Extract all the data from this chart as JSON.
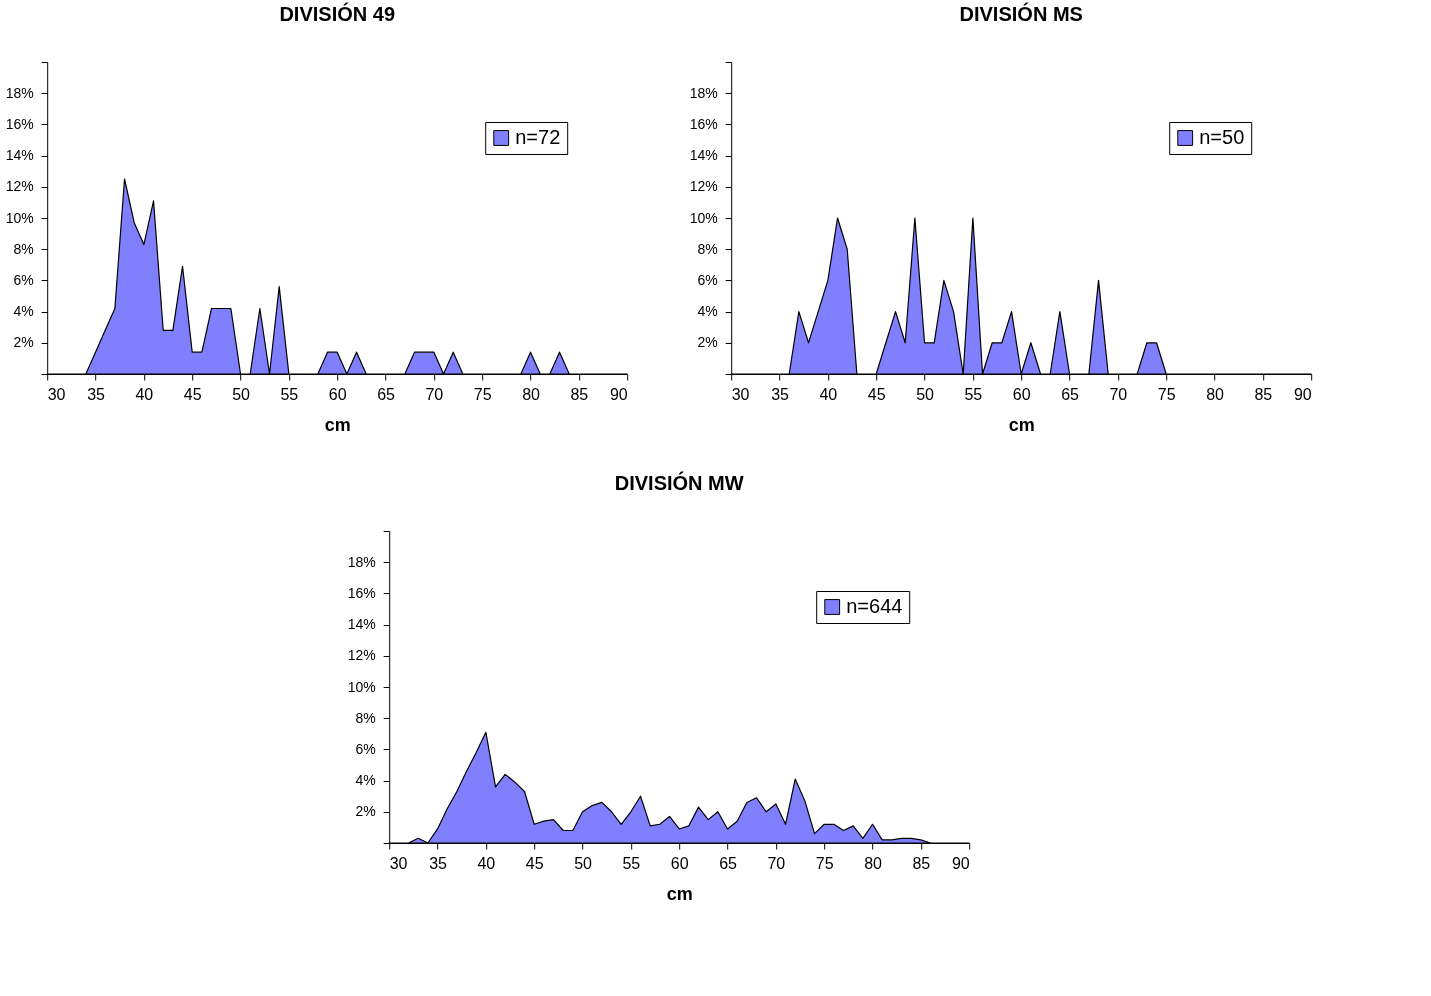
{
  "chart_data": [
    {
      "type": "area",
      "title": "DIVISIÓN 49",
      "xlabel": "cm",
      "legend": "top right",
      "grid": false,
      "x": [
        30,
        31,
        32,
        33,
        34,
        35,
        36,
        37,
        38,
        39,
        40,
        41,
        42,
        43,
        44,
        45,
        46,
        47,
        48,
        49,
        50,
        51,
        52,
        53,
        54,
        55,
        56,
        57,
        58,
        59,
        60,
        61,
        62,
        63,
        64,
        65,
        66,
        67,
        68,
        69,
        70,
        71,
        72,
        73,
        74,
        75,
        76,
        77,
        78,
        79,
        80,
        81,
        82,
        83,
        84,
        85,
        86,
        87,
        88,
        89,
        90
      ],
      "series": [
        {
          "name": "n=72",
          "color": "#8080ff",
          "values": [
            0,
            0,
            0,
            0,
            0,
            1.4,
            2.8,
            4.2,
            12.5,
            9.7,
            8.3,
            11.1,
            2.8,
            2.8,
            6.9,
            1.4,
            1.4,
            4.2,
            4.2,
            4.2,
            0,
            0,
            4.2,
            0,
            5.6,
            0,
            0,
            0,
            0,
            1.4,
            1.4,
            0,
            1.4,
            0,
            0,
            0,
            0,
            0,
            1.4,
            1.4,
            1.4,
            0,
            1.4,
            0,
            0,
            0,
            0,
            0,
            0,
            0,
            1.4,
            0,
            0,
            1.4,
            0,
            0,
            0,
            0,
            0,
            0,
            0
          ]
        }
      ],
      "xlim": [
        30,
        90
      ],
      "xticks": [
        30,
        35,
        40,
        45,
        50,
        55,
        60,
        65,
        70,
        75,
        80,
        85,
        90
      ],
      "ylim": [
        0,
        20
      ],
      "yticks": [
        {
          "value": 0,
          "label": null
        },
        {
          "value": 2,
          "label": "2%"
        },
        {
          "value": 4,
          "label": "4%"
        },
        {
          "value": 6,
          "label": "6%"
        },
        {
          "value": 8,
          "label": "8%"
        },
        {
          "value": 10,
          "label": "10%"
        },
        {
          "value": 12,
          "label": "12%"
        },
        {
          "value": 14,
          "label": "14%"
        },
        {
          "value": 16,
          "label": "16%"
        },
        {
          "value": 18,
          "label": "18%"
        },
        {
          "value": 20,
          "label": null
        }
      ]
    },
    {
      "type": "area",
      "title": "DIVISIÓN MS",
      "xlabel": "cm",
      "legend": "top right",
      "grid": false,
      "x": [
        30,
        31,
        32,
        33,
        34,
        35,
        36,
        37,
        38,
        39,
        40,
        41,
        42,
        43,
        44,
        45,
        46,
        47,
        48,
        49,
        50,
        51,
        52,
        53,
        54,
        55,
        56,
        57,
        58,
        59,
        60,
        61,
        62,
        63,
        64,
        65,
        66,
        67,
        68,
        69,
        70,
        71,
        72,
        73,
        74,
        75,
        76,
        77,
        78,
        79,
        80,
        81,
        82,
        83,
        84,
        85,
        86,
        87,
        88,
        89,
        90
      ],
      "series": [
        {
          "name": "n=50",
          "color": "#8080ff",
          "values": [
            0,
            0,
            0,
            0,
            0,
            0,
            0,
            4,
            2,
            4,
            6,
            10,
            8,
            0,
            0,
            0,
            2,
            4,
            2,
            10,
            2,
            2,
            6,
            4,
            0,
            10,
            0,
            2,
            2,
            4,
            0,
            2,
            0,
            0,
            4,
            0,
            0,
            0,
            6,
            0,
            0,
            0,
            0,
            2,
            2,
            0,
            0,
            0,
            0,
            0,
            0,
            0,
            0,
            0,
            0,
            0,
            0,
            0,
            0,
            0,
            0
          ]
        }
      ],
      "xlim": [
        30,
        90
      ],
      "xticks": [
        30,
        35,
        40,
        45,
        50,
        55,
        60,
        65,
        70,
        75,
        80,
        85,
        90
      ],
      "ylim": [
        0,
        20
      ],
      "yticks": [
        {
          "value": 0,
          "label": null
        },
        {
          "value": 2,
          "label": "2%"
        },
        {
          "value": 4,
          "label": "4%"
        },
        {
          "value": 6,
          "label": "6%"
        },
        {
          "value": 8,
          "label": "8%"
        },
        {
          "value": 10,
          "label": "10%"
        },
        {
          "value": 12,
          "label": "12%"
        },
        {
          "value": 14,
          "label": "14%"
        },
        {
          "value": 16,
          "label": "16%"
        },
        {
          "value": 18,
          "label": "18%"
        },
        {
          "value": 20,
          "label": null
        }
      ]
    },
    {
      "type": "area",
      "title": "DIVISIÓN MW",
      "xlabel": "cm",
      "legend": "top right",
      "grid": false,
      "x": [
        30,
        31,
        32,
        33,
        34,
        35,
        36,
        37,
        38,
        39,
        40,
        41,
        42,
        43,
        44,
        45,
        46,
        47,
        48,
        49,
        50,
        51,
        52,
        53,
        54,
        55,
        56,
        57,
        58,
        59,
        60,
        61,
        62,
        63,
        64,
        65,
        66,
        67,
        68,
        69,
        70,
        71,
        72,
        73,
        74,
        75,
        76,
        77,
        78,
        79,
        80,
        81,
        82,
        83,
        84,
        85,
        86,
        87,
        88,
        89,
        90
      ],
      "series": [
        {
          "name": "n=644",
          "color": "#8080ff",
          "values": [
            0,
            0,
            0,
            0.3,
            0,
            0.9,
            2.2,
            3.3,
            4.6,
            5.8,
            7.1,
            3.6,
            4.4,
            3.9,
            3.3,
            1.2,
            1.4,
            1.5,
            0.8,
            0.8,
            2.0,
            2.4,
            2.6,
            2.0,
            1.2,
            2.0,
            3.0,
            1.1,
            1.2,
            1.7,
            0.9,
            1.1,
            2.3,
            1.5,
            2.0,
            0.9,
            1.4,
            2.6,
            2.9,
            2.0,
            2.5,
            1.2,
            4.1,
            2.7,
            0.6,
            1.2,
            1.2,
            0.8,
            1.1,
            0.3,
            1.2,
            0.2,
            0.2,
            0.3,
            0.3,
            0.2,
            0,
            0,
            0,
            0,
            0
          ]
        }
      ],
      "xlim": [
        30,
        90
      ],
      "xticks": [
        30,
        35,
        40,
        45,
        50,
        55,
        60,
        65,
        70,
        75,
        80,
        85,
        90
      ],
      "ylim": [
        0,
        20
      ],
      "yticks": [
        {
          "value": 0,
          "label": null
        },
        {
          "value": 2,
          "label": "2%"
        },
        {
          "value": 4,
          "label": "4%"
        },
        {
          "value": 6,
          "label": "6%"
        },
        {
          "value": 8,
          "label": "8%"
        },
        {
          "value": 10,
          "label": "10%"
        },
        {
          "value": 12,
          "label": "12%"
        },
        {
          "value": 14,
          "label": "14%"
        },
        {
          "value": 16,
          "label": "16%"
        },
        {
          "value": 18,
          "label": "18%"
        },
        {
          "value": 20,
          "label": null
        }
      ]
    }
  ]
}
